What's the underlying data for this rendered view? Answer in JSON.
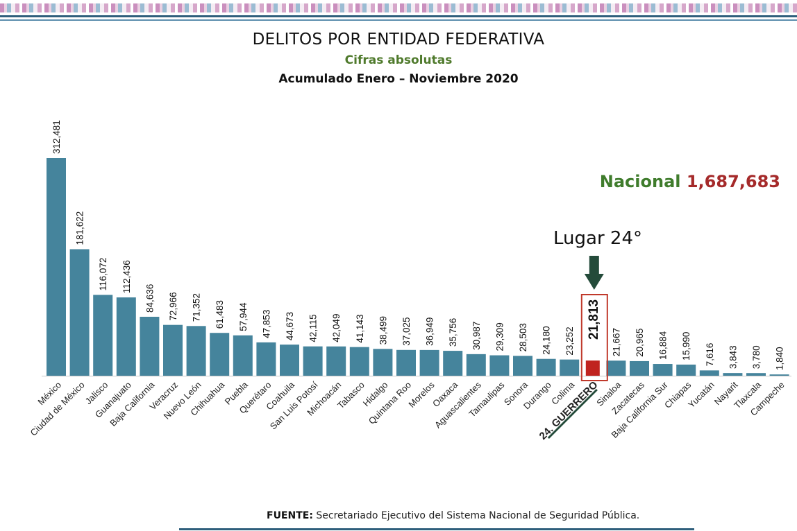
{
  "header": {
    "title": "DELITOS POR ENTIDAD FEDERATIVA",
    "subtitle": "Cifras absolutas",
    "period": "Acumulado Enero – Noviembre 2020"
  },
  "nacional": {
    "label": "Nacional",
    "value": "1,687,683"
  },
  "highlight": {
    "label": "Lugar 24°",
    "category_label": "24. GUERRERO",
    "value_label": "21,813"
  },
  "footer": {
    "source_label": "FUENTE:",
    "source_text": "Secretariado Ejecutivo del Sistema Nacional de Seguridad Pública."
  },
  "colors": {
    "bar": "#45849c",
    "highlight_bar": "#c0231f",
    "highlight_box": "#c0392b",
    "arrow": "#244b3a",
    "nacional_label": "#3f7c2c",
    "nacional_value": "#a52a2a",
    "subtitle": "#4f7a2c"
  },
  "chart_data": {
    "type": "bar",
    "title": "DELITOS POR ENTIDAD FEDERATIVA",
    "subtitle": "Cifras absolutas",
    "categories": [
      "México",
      "Ciudad de México",
      "Jalisco",
      "Guanajuato",
      "Baja California",
      "Veracruz",
      "Nuevo León",
      "Chihuahua",
      "Puebla",
      "Querétaro",
      "Coahuila",
      "San Luis Potosí",
      "Michoacán",
      "Tabasco",
      "Hidalgo",
      "Quintana Roo",
      "Morelos",
      "Oaxaca",
      "Aguascalientes",
      "Tamaulipas",
      "Sonora",
      "Durango",
      "Colima",
      "24. GUERRERO",
      "Sinaloa",
      "Zacatecas",
      "Baja California Sur",
      "Chiapas",
      "Yucatán",
      "Nayarit",
      "Tlaxcala",
      "Campeche"
    ],
    "values": [
      312481,
      181622,
      116072,
      112436,
      84636,
      72966,
      71352,
      61483,
      57944,
      47853,
      44673,
      42115,
      42049,
      41143,
      38499,
      37025,
      36949,
      35756,
      30987,
      29309,
      28503,
      24180,
      23252,
      21813,
      21667,
      20965,
      16884,
      15990,
      7616,
      3843,
      3780,
      1840
    ],
    "value_labels": [
      "312,481",
      "181,622",
      "116,072",
      "112,436",
      "84,636",
      "72,966",
      "71,352",
      "61,483",
      "57,944",
      "47,853",
      "44,673",
      "42,115",
      "42,049",
      "41,143",
      "38,499",
      "37,025",
      "36,949",
      "35,756",
      "30,987",
      "29,309",
      "28,503",
      "24,180",
      "23,252",
      "21,813",
      "21,667",
      "20,965",
      "16,884",
      "15,990",
      "7,616",
      "3,843",
      "3,780",
      "1,840"
    ],
    "highlight_index": 23,
    "ylim": [
      0,
      312481
    ],
    "grid": false,
    "xlabel": "",
    "ylabel": ""
  }
}
